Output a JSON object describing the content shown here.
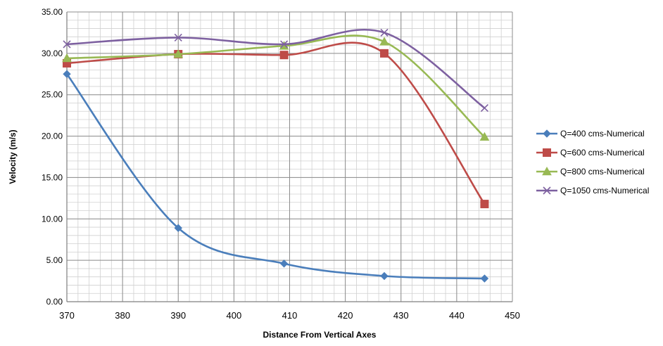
{
  "chart_data": {
    "type": "line",
    "title": "",
    "xlabel": "Distance From Vertical  Axes",
    "ylabel": "Velocity (m/s)",
    "xlim": [
      370,
      450
    ],
    "ylim": [
      0,
      35
    ],
    "x_ticks": [
      370,
      380,
      390,
      400,
      410,
      420,
      430,
      440,
      450
    ],
    "x_tick_labels": [
      "370",
      "380",
      "390",
      "400",
      "410",
      "420",
      "430",
      "440",
      "450"
    ],
    "y_ticks": [
      0,
      5,
      10,
      15,
      20,
      25,
      30,
      35
    ],
    "y_tick_labels": [
      "0.00",
      "5.00",
      "10.00",
      "15.00",
      "20.00",
      "25.00",
      "30.00",
      "35.00"
    ],
    "grid": true,
    "minor_grid": true,
    "legend_position": "right",
    "series": [
      {
        "name": "Q=400 cms-Numerical",
        "color": "#4a7ebb",
        "marker": "diamond",
        "x": [
          370,
          390,
          409,
          427,
          445
        ],
        "y": [
          27.5,
          8.9,
          4.6,
          3.1,
          2.8
        ]
      },
      {
        "name": "Q=600 cms-Numerical",
        "color": "#be4b48",
        "marker": "square",
        "x": [
          370,
          390,
          409,
          427,
          445
        ],
        "y": [
          28.8,
          29.9,
          29.8,
          30.0,
          11.8
        ]
      },
      {
        "name": "Q=800 cms-Numerical",
        "color": "#98b954",
        "marker": "triangle",
        "x": [
          370,
          390,
          409,
          427,
          445
        ],
        "y": [
          29.4,
          29.9,
          30.9,
          31.4,
          19.9
        ]
      },
      {
        "name": "Q=1050 cms-Numerical",
        "color": "#7d60a0",
        "marker": "x",
        "x": [
          370,
          390,
          409,
          427,
          445
        ],
        "y": [
          31.1,
          31.9,
          31.1,
          32.5,
          23.4
        ]
      }
    ]
  }
}
